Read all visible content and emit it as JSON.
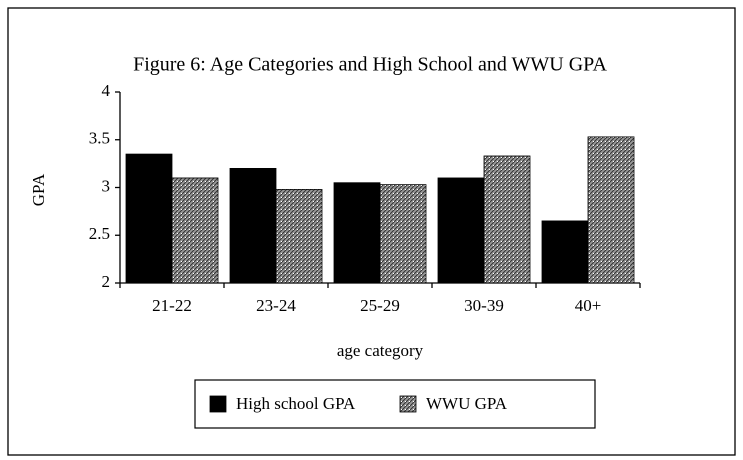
{
  "chart_data": {
    "type": "bar",
    "title": "Figure 6: Age Categories and High School and WWU GPA",
    "categories": [
      "21-22",
      "23-24",
      "25-29",
      "30-39",
      "40+"
    ],
    "series": [
      {
        "name": "High school GPA",
        "color": "#000000",
        "values": [
          3.35,
          3.2,
          3.05,
          3.1,
          2.65
        ]
      },
      {
        "name": "WWU GPA",
        "color": "#9a9a9a",
        "values": [
          3.1,
          2.98,
          3.03,
          3.33,
          3.53
        ]
      }
    ],
    "ylim": [
      2,
      4
    ],
    "yticks": [
      2,
      2.5,
      3,
      3.5,
      4
    ],
    "y_label": "GPA",
    "x_label": "age category",
    "grid": false,
    "legend": "bottom"
  }
}
